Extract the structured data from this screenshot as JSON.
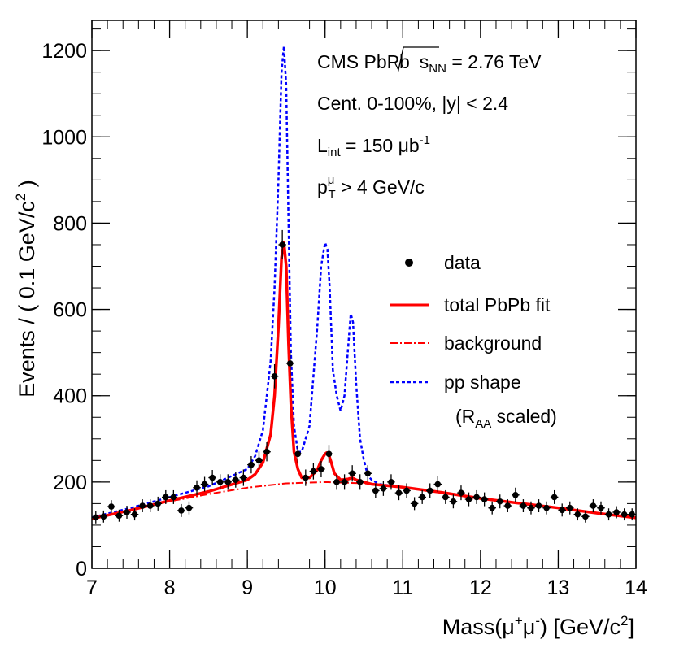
{
  "chart_data": {
    "type": "line",
    "xlabel": {
      "prefix": "Mass(",
      "mu1": "μ",
      "sup1": "+",
      "mu2": "μ",
      "sup2": "-",
      "suffix": ") [GeV/c",
      "sup3": "2",
      "end": "]"
    },
    "ylabel": {
      "main": "Events / ( 0.1 GeV/c",
      "sup": "2",
      "end": " )"
    },
    "xlim": [
      7,
      14
    ],
    "ylim": [
      0,
      1270
    ],
    "x_ticks": [
      7,
      8,
      9,
      10,
      11,
      12,
      13,
      14
    ],
    "y_ticks": [
      0,
      200,
      400,
      600,
      800,
      1000,
      1200
    ],
    "annotations": {
      "line1_prefix": "CMS PbPb",
      "line1_s": "s",
      "line1_sub": "NN",
      "line1_value": " = 2.76 TeV",
      "line2": "Cent. 0-100%, |y| < 2.4",
      "line3_L": "L",
      "line3_sub": "int",
      "line3_value": " = 150 μb",
      "line3_sup": "-1",
      "line4_p": "p",
      "line4_sup": "μ",
      "line4_sub": "T",
      "line4_value": " > 4 GeV/c"
    },
    "legend": {
      "position": "right",
      "data": "data",
      "fit": "total PbPb fit",
      "background": "background",
      "pp": "pp shape",
      "pp_note_open": "(R",
      "pp_note_sub": "AA",
      "pp_note_close": " scaled)"
    },
    "colors": {
      "data": "#000000",
      "fit": "#ff0000",
      "background": "#ff0000",
      "pp": "#0000ff"
    },
    "data_points": {
      "x": [
        7.05,
        7.15,
        7.25,
        7.35,
        7.45,
        7.55,
        7.65,
        7.75,
        7.85,
        7.95,
        8.05,
        8.15,
        8.25,
        8.35,
        8.45,
        8.55,
        8.65,
        8.75,
        8.85,
        8.95,
        9.05,
        9.15,
        9.25,
        9.35,
        9.45,
        9.55,
        9.65,
        9.75,
        9.85,
        9.95,
        10.05,
        10.15,
        10.25,
        10.35,
        10.45,
        10.55,
        10.65,
        10.75,
        10.85,
        10.95,
        11.05,
        11.15,
        11.25,
        11.35,
        11.45,
        11.55,
        11.65,
        11.75,
        11.85,
        11.95,
        12.05,
        12.15,
        12.25,
        12.35,
        12.45,
        12.55,
        12.65,
        12.75,
        12.85,
        12.95,
        13.05,
        13.15,
        13.25,
        13.35,
        13.45,
        13.55,
        13.65,
        13.75,
        13.85,
        13.95
      ],
      "y": [
        118,
        120,
        143,
        122,
        130,
        125,
        145,
        145,
        150,
        165,
        165,
        134,
        140,
        187,
        195,
        210,
        200,
        200,
        205,
        210,
        240,
        250,
        270,
        445,
        750,
        475,
        265,
        210,
        225,
        230,
        265,
        200,
        200,
        220,
        200,
        220,
        180,
        185,
        200,
        175,
        180,
        150,
        165,
        180,
        195,
        165,
        155,
        175,
        160,
        165,
        160,
        140,
        155,
        145,
        170,
        145,
        140,
        145,
        140,
        165,
        135,
        140,
        125,
        120,
        145,
        140,
        125,
        130,
        125,
        125
      ],
      "err": [
        14,
        14,
        15,
        14,
        15,
        14,
        15,
        15,
        16,
        16,
        16,
        15,
        15,
        17,
        17,
        18,
        18,
        18,
        18,
        19,
        20,
        21,
        22,
        28,
        34,
        28,
        21,
        19,
        19,
        19,
        21,
        18,
        18,
        19,
        18,
        19,
        17,
        17,
        18,
        17,
        17,
        15,
        16,
        17,
        18,
        16,
        16,
        17,
        16,
        16,
        16,
        15,
        16,
        15,
        17,
        15,
        15,
        15,
        15,
        16,
        15,
        15,
        14,
        14,
        15,
        15,
        14,
        14,
        14,
        14
      ]
    },
    "background_model": {
      "x": [
        7.0,
        7.5,
        8.0,
        8.5,
        9.0,
        9.5,
        10.0,
        10.5,
        11.0,
        11.5,
        12.0,
        12.5,
        13.0,
        13.5,
        14.0
      ],
      "y": [
        115,
        135,
        155,
        172,
        187,
        197,
        200,
        197,
        188,
        176,
        162,
        151,
        140,
        128,
        117
      ]
    },
    "fit_model": {
      "x": [
        7.0,
        7.5,
        8.0,
        8.5,
        9.0,
        9.1,
        9.2,
        9.3,
        9.35,
        9.4,
        9.44,
        9.47,
        9.5,
        9.53,
        9.56,
        9.6,
        9.65,
        9.7,
        9.8,
        9.9,
        9.95,
        10.0,
        10.02,
        10.05,
        10.08,
        10.12,
        10.2,
        10.3,
        10.35,
        10.4,
        10.5,
        10.6,
        11.0,
        11.5,
        12.0,
        12.5,
        13.0,
        13.5,
        14.0
      ],
      "y": [
        115,
        135,
        157,
        178,
        205,
        218,
        245,
        310,
        400,
        560,
        720,
        755,
        700,
        520,
        380,
        270,
        230,
        210,
        210,
        228,
        250,
        265,
        268,
        262,
        245,
        220,
        205,
        207,
        210,
        205,
        200,
        195,
        188,
        176,
        162,
        151,
        140,
        128,
        117
      ]
    },
    "pp_model": {
      "x": [
        7.0,
        7.5,
        8.0,
        8.5,
        9.0,
        9.1,
        9.2,
        9.3,
        9.35,
        9.4,
        9.44,
        9.47,
        9.5,
        9.53,
        9.56,
        9.6,
        9.65,
        9.7,
        9.8,
        9.9,
        9.95,
        10.0,
        10.03,
        10.06,
        10.1,
        10.15,
        10.2,
        10.25,
        10.3,
        10.33,
        10.36,
        10.4,
        10.45,
        10.5,
        10.55,
        10.6,
        10.7,
        11.0,
        11.5,
        12.0,
        12.5,
        13.0,
        13.5,
        14.0
      ],
      "y": [
        118,
        140,
        165,
        190,
        230,
        260,
        320,
        480,
        650,
        900,
        1150,
        1210,
        1120,
        800,
        500,
        330,
        270,
        270,
        330,
        560,
        700,
        755,
        740,
        650,
        460,
        400,
        365,
        400,
        520,
        590,
        570,
        430,
        300,
        250,
        215,
        205,
        195,
        188,
        176,
        162,
        151,
        140,
        128,
        117
      ]
    }
  }
}
